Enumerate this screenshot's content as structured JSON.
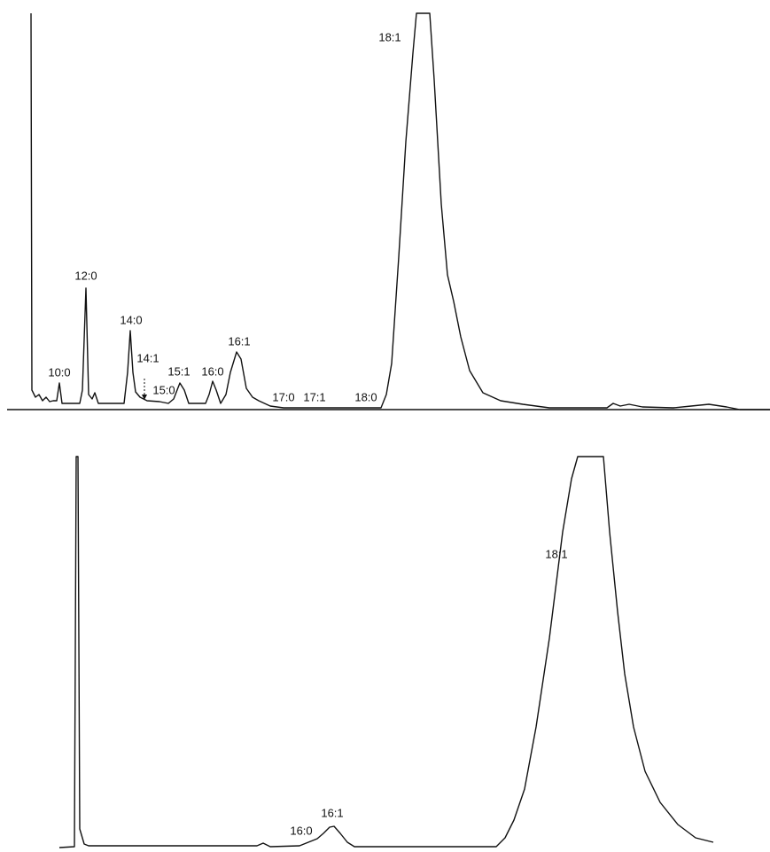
{
  "top_trace": {
    "peaks": [
      "18:1",
      "12:0",
      "14:0",
      "14:1",
      "10:0",
      "15:0",
      "15:1",
      "16:0",
      "16:1",
      "17:0",
      "17:1",
      "18:0"
    ]
  },
  "bottom_trace": {
    "peaks": [
      "18:1",
      "16:0",
      "16:1"
    ]
  }
}
